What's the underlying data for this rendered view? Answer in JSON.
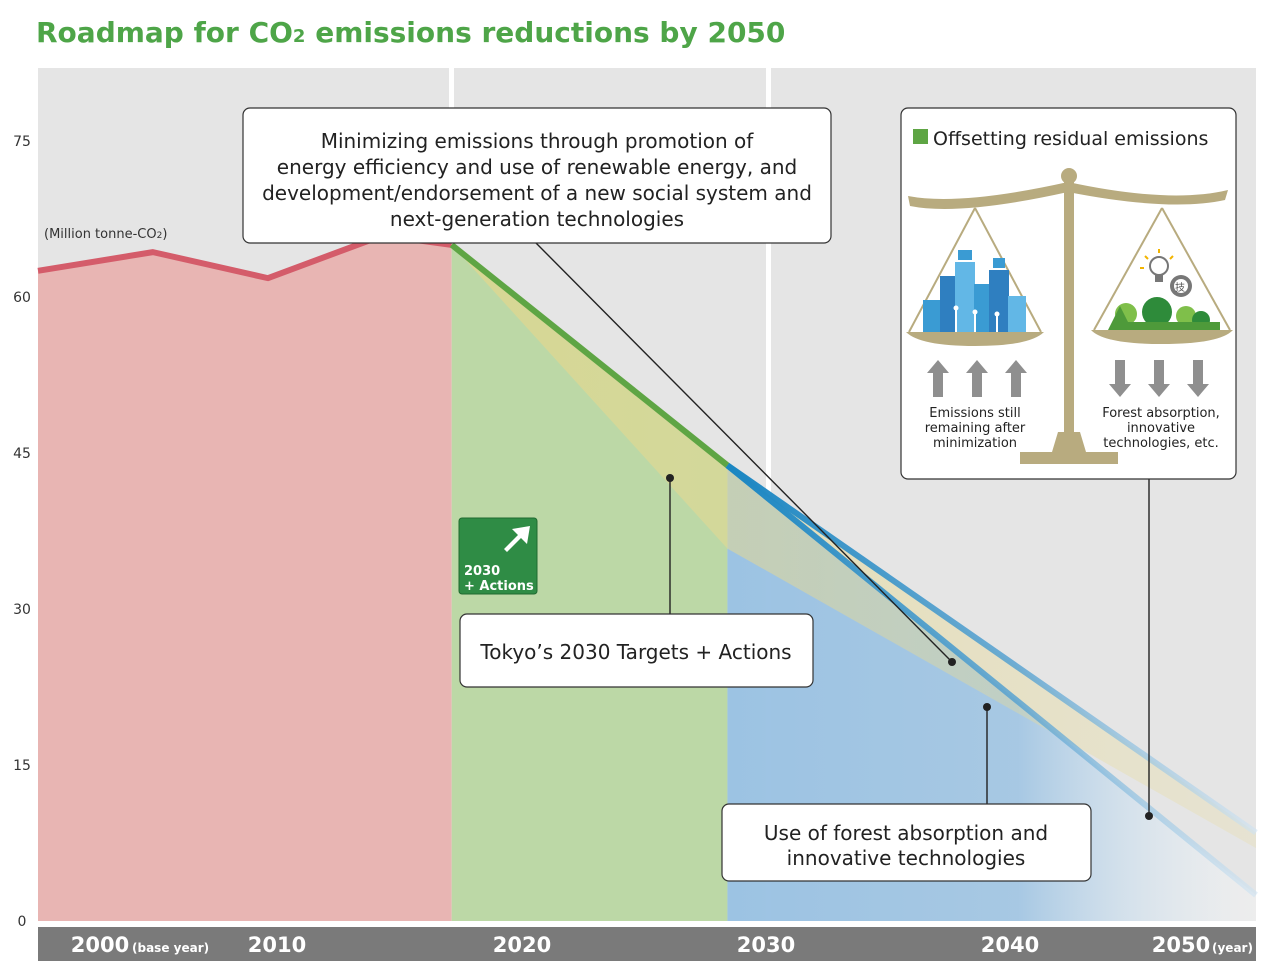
{
  "title_main": "Roadmap for CO",
  "title_sub": "2",
  "title_rest": " emissions reductions by 2050",
  "unit_prefix": "(Million tonne-CO",
  "unit_sub": "2",
  "unit_suffix": ")",
  "x_note_base": "(base year)",
  "x_note_unit": "(year)",
  "callout_top": [
    "Minimizing emissions through promotion of",
    "energy efficiency and use of renewable energy, and",
    "development/endorsement of a new social system and",
    "next-generation technologies"
  ],
  "callout_targets": "Tokyo’s 2030 Targets + Actions",
  "callout_forest": [
    "Use of forest absorption and",
    "innovative technologies"
  ],
  "badge": [
    "2030",
    "+ Actions"
  ],
  "offset_panel": {
    "legend": "Offsetting residual emissions",
    "left_caption": [
      "Emissions still",
      "remaining after",
      "minimization"
    ],
    "right_caption": [
      "Forest absorption,",
      "innovative",
      "technologies, etc."
    ],
    "gear_char": "技"
  },
  "colors": {
    "historical": "#d45c6a",
    "historical_fill": "#e8b5b3",
    "target_line": "#5ea544",
    "target_fill": "#bcd8a6",
    "projection_line": "#1a86c2",
    "projection_fill": "#9cc3e3",
    "offset_wedge": "#e3d68c",
    "scale": "#b8ab7f",
    "axis_bar": "#7a7a7a",
    "background": "#e5e5e5",
    "title": "#4ea548"
  },
  "chart_data": {
    "type": "area",
    "title": "Roadmap for CO2 emissions reductions by 2050",
    "ylabel": "(Million tonne-CO2)",
    "ylim": [
      0,
      82
    ],
    "xlim": [
      2000,
      2053
    ],
    "yticks": [
      0,
      15,
      30,
      45,
      60,
      75
    ],
    "xticks": [
      {
        "value": 2000,
        "label": "2000"
      },
      {
        "value": 2010,
        "label": "2010"
      },
      {
        "value": 2020,
        "label": "2020"
      },
      {
        "value": 2030,
        "label": "2030"
      },
      {
        "value": 2040,
        "label": "2040"
      },
      {
        "value": 2050,
        "label": "2050"
      }
    ],
    "grid": false,
    "series": [
      {
        "values_x": [
          2000,
          2005,
          2010,
          2015,
          2018
        ],
        "values_y": [
          62.5,
          64.3,
          61.8,
          65.9,
          65.0
        ]
      },
      {
        "values_x": [
          2018,
          2030
        ],
        "values_y": [
          65.0,
          43.8
        ]
      },
      {
        "values_x": [
          2030,
          2053
        ],
        "values_y": [
          43.8,
          8.5
        ]
      },
      {
        "values_x": [
          2030,
          2053
        ],
        "values_y": [
          43.8,
          2.5
        ]
      }
    ]
  }
}
